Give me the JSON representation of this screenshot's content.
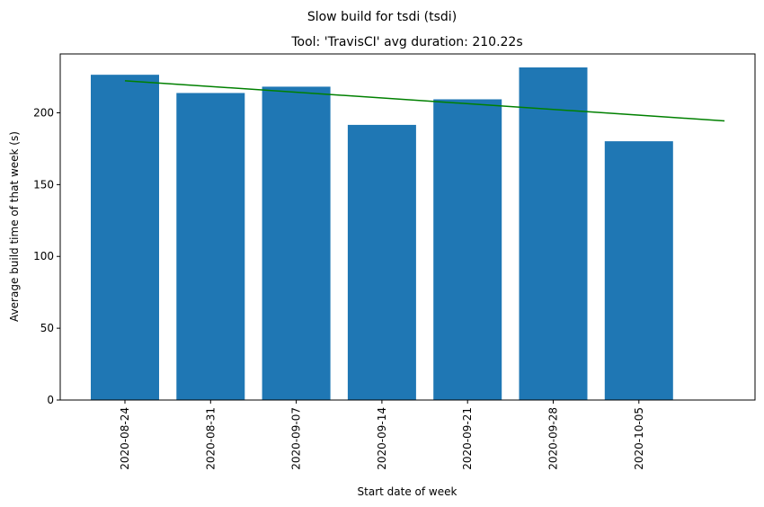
{
  "chart_data": {
    "type": "bar",
    "suptitle": "Slow build for tsdi (tsdi)",
    "title": "Tool: 'TravisCI' avg duration: 210.22s",
    "xlabel": "Start date of week",
    "ylabel": "Average build time of that week (s)",
    "categories": [
      "2020-08-24",
      "2020-08-31",
      "2020-09-07",
      "2020-09-14",
      "2020-09-21",
      "2020-09-28",
      "2020-10-05"
    ],
    "values": [
      226.5,
      213.8,
      218.2,
      191.6,
      209.4,
      231.6,
      180.2
    ],
    "ylim": [
      0,
      241
    ],
    "yticks": [
      0,
      50,
      100,
      150,
      200
    ],
    "bar_color": "#1f77b4",
    "trend": {
      "color": "#008000",
      "start_category_index": 0,
      "end_category_index": 7,
      "y_start": 222.3,
      "y_end": 194.4
    }
  }
}
